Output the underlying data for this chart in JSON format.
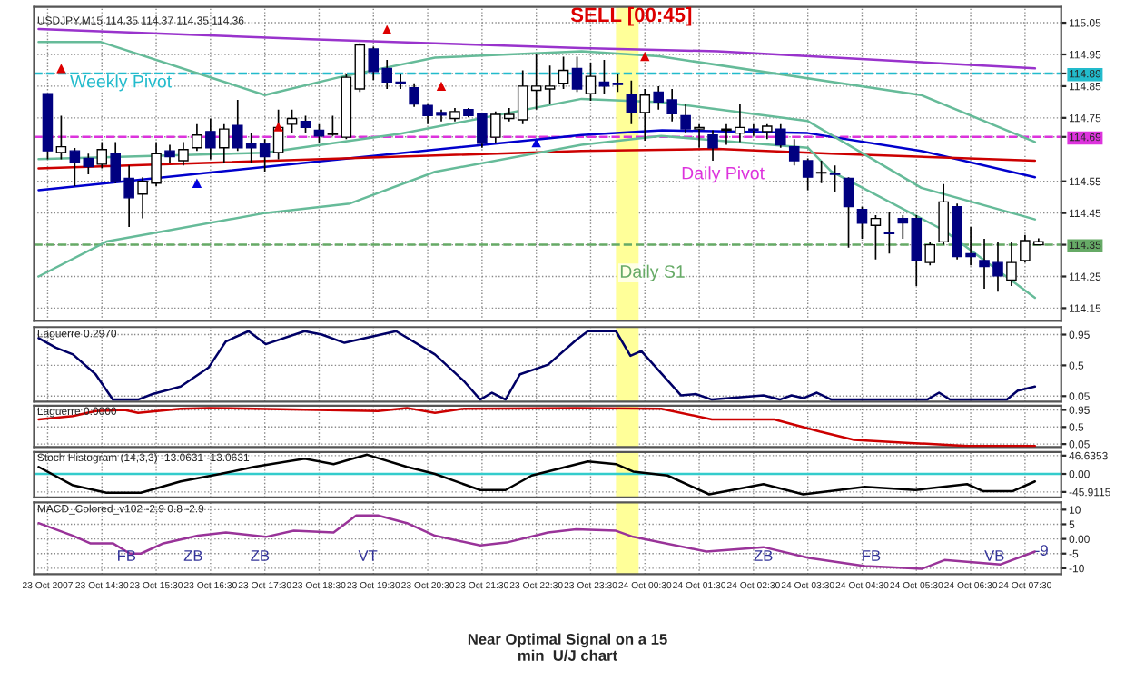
{
  "chart_data": [
    {
      "type": "candlestick",
      "title": "USDJPY,M15 114.35 114.37 114.35 114.36",
      "x": [
        "2007-10-23T13:30",
        "2007-10-23T13:45",
        "2007-10-23T14:00",
        "2007-10-23T14:15",
        "2007-10-23T14:30",
        "2007-10-23T14:45",
        "2007-10-23T15:00",
        "2007-10-23T15:15",
        "2007-10-23T15:30",
        "2007-10-23T15:45",
        "2007-10-23T16:00",
        "2007-10-23T16:15",
        "2007-10-23T16:30",
        "2007-10-23T16:45",
        "2007-10-23T17:00",
        "2007-10-23T17:15",
        "2007-10-23T17:30",
        "2007-10-23T17:45",
        "2007-10-23T18:00",
        "2007-10-23T18:15",
        "2007-10-23T18:30",
        "2007-10-23T18:45",
        "2007-10-23T19:00",
        "2007-10-23T19:15",
        "2007-10-23T19:30",
        "2007-10-23T19:45",
        "2007-10-23T20:00",
        "2007-10-23T20:15",
        "2007-10-23T20:30",
        "2007-10-23T20:45",
        "2007-10-23T21:00",
        "2007-10-23T21:15",
        "2007-10-23T21:30",
        "2007-10-23T21:45",
        "2007-10-23T22:00",
        "2007-10-23T22:15",
        "2007-10-23T22:30",
        "2007-10-23T22:45",
        "2007-10-23T23:00",
        "2007-10-23T23:15",
        "2007-10-23T23:30",
        "2007-10-23T23:45",
        "2007-10-24T00:00",
        "2007-10-24T00:15",
        "2007-10-24T00:30",
        "2007-10-24T00:45",
        "2007-10-24T01:00",
        "2007-10-24T01:15",
        "2007-10-24T01:30",
        "2007-10-24T01:45",
        "2007-10-24T02:00",
        "2007-10-24T02:15",
        "2007-10-24T02:30",
        "2007-10-24T02:45",
        "2007-10-24T03:00",
        "2007-10-24T03:15",
        "2007-10-24T03:30",
        "2007-10-24T03:45",
        "2007-10-24T04:00",
        "2007-10-24T04:15",
        "2007-10-24T04:30",
        "2007-10-24T04:45",
        "2007-10-24T05:00",
        "2007-10-24T05:15",
        "2007-10-24T05:30",
        "2007-10-24T05:45",
        "2007-10-24T06:00",
        "2007-10-24T06:15",
        "2007-10-24T06:30",
        "2007-10-24T06:45",
        "2007-10-24T07:00",
        "2007-10-24T07:15",
        "2007-10-24T07:30",
        "2007-10-24T07:45"
      ],
      "ohlc": [
        [
          114.826,
          114.826,
          114.619,
          114.646
        ],
        [
          114.641,
          114.757,
          114.619,
          114.659
        ],
        [
          114.646,
          114.655,
          114.535,
          114.609
        ],
        [
          114.622,
          114.637,
          114.572,
          114.596
        ],
        [
          114.604,
          114.674,
          114.591,
          114.65
        ],
        [
          114.637,
          114.674,
          114.544,
          114.55
        ],
        [
          114.559,
          114.6,
          114.406,
          114.498
        ],
        [
          114.51,
          114.563,
          114.433,
          114.55
        ],
        [
          114.544,
          114.674,
          114.535,
          114.637
        ],
        [
          114.646,
          114.665,
          114.609,
          114.628
        ],
        [
          114.615,
          114.674,
          114.6,
          114.65
        ],
        [
          114.656,
          114.73,
          114.646,
          114.696
        ],
        [
          114.707,
          114.748,
          114.619,
          114.656
        ],
        [
          114.656,
          114.73,
          114.609,
          114.715
        ],
        [
          114.726,
          114.807,
          114.646,
          114.656
        ],
        [
          114.67,
          114.702,
          114.609,
          114.656
        ],
        [
          114.669,
          114.683,
          114.581,
          114.628
        ],
        [
          114.641,
          114.776,
          114.619,
          114.72
        ],
        [
          114.73,
          114.776,
          114.702,
          114.748
        ],
        [
          114.739,
          114.757,
          114.702,
          114.72
        ],
        [
          114.711,
          114.73,
          114.67,
          114.693
        ],
        [
          114.698,
          114.757,
          114.693,
          114.702
        ],
        [
          114.689,
          114.887,
          114.683,
          114.878
        ],
        [
          114.841,
          114.985,
          114.832,
          114.98
        ],
        [
          114.967,
          114.974,
          114.869,
          114.896
        ],
        [
          114.906,
          114.933,
          114.841,
          114.863
        ],
        [
          114.863,
          114.887,
          114.841,
          114.859
        ],
        [
          114.845,
          114.859,
          114.785,
          114.794
        ],
        [
          114.789,
          114.794,
          114.73,
          114.757
        ],
        [
          114.767,
          114.776,
          114.739,
          114.759
        ],
        [
          114.748,
          114.781,
          114.739,
          114.77
        ],
        [
          114.776,
          114.781,
          114.752,
          114.757
        ],
        [
          114.763,
          114.767,
          114.656,
          114.67
        ],
        [
          114.689,
          114.77,
          114.67,
          114.761
        ],
        [
          114.748,
          114.781,
          114.739,
          114.761
        ],
        [
          114.744,
          114.9,
          114.73,
          114.85
        ],
        [
          114.837,
          114.952,
          114.776,
          114.85
        ],
        [
          114.841,
          114.915,
          114.794,
          114.85
        ],
        [
          114.859,
          114.943,
          114.841,
          114.9
        ],
        [
          114.906,
          114.943,
          114.832,
          114.841
        ],
        [
          114.826,
          114.924,
          114.804,
          114.881
        ],
        [
          114.863,
          114.933,
          114.826,
          114.85
        ],
        [
          114.859,
          114.887,
          114.832,
          114.855
        ],
        [
          114.822,
          114.868,
          114.73,
          114.767
        ],
        [
          114.767,
          114.841,
          114.678,
          114.822
        ],
        [
          114.831,
          114.85,
          114.776,
          114.8
        ],
        [
          114.807,
          114.841,
          114.739,
          114.763
        ],
        [
          114.757,
          114.794,
          114.702,
          114.715
        ],
        [
          114.715,
          114.73,
          114.656,
          114.72
        ],
        [
          114.696,
          114.711,
          114.615,
          114.656
        ],
        [
          114.711,
          114.73,
          114.665,
          114.715
        ],
        [
          114.702,
          114.794,
          114.674,
          114.72
        ],
        [
          114.715,
          114.73,
          114.693,
          114.711
        ],
        [
          114.707,
          114.73,
          114.683,
          114.724
        ],
        [
          114.715,
          114.73,
          114.656,
          114.665
        ],
        [
          114.659,
          114.683,
          114.6,
          114.615
        ],
        [
          114.615,
          114.622,
          114.522,
          114.563
        ],
        [
          114.576,
          114.615,
          114.544,
          114.578
        ],
        [
          114.574,
          114.6,
          114.517,
          114.572
        ],
        [
          114.559,
          114.563,
          114.341,
          114.47
        ],
        [
          114.461,
          114.47,
          114.369,
          114.418
        ],
        [
          114.411,
          114.443,
          114.304,
          114.433
        ],
        [
          114.387,
          114.452,
          114.322,
          114.385
        ],
        [
          114.433,
          114.443,
          114.369,
          114.419
        ],
        [
          114.433,
          114.443,
          114.22,
          114.3
        ],
        [
          114.294,
          114.359,
          114.285,
          114.35
        ],
        [
          114.359,
          114.541,
          114.35,
          114.485
        ],
        [
          114.47,
          114.48,
          114.304,
          114.313
        ],
        [
          114.322,
          114.406,
          114.285,
          114.313
        ],
        [
          114.3,
          114.369,
          114.211,
          114.281
        ],
        [
          114.294,
          114.359,
          114.202,
          114.252
        ],
        [
          114.239,
          114.359,
          114.22,
          114.294
        ],
        [
          114.3,
          114.381,
          114.294,
          114.363
        ],
        [
          114.35,
          114.37,
          114.35,
          114.36
        ]
      ],
      "series": [
        {
          "type": "line",
          "color": "#9933cc",
          "x": [
            "2007-10-23T13:20",
            "2007-10-23T18:20",
            "2007-10-23T23:20",
            "2007-10-24T01:50",
            "2007-10-24T07:41"
          ],
          "values": [
            115.03,
            114.998,
            114.97,
            114.96,
            114.906
          ]
        },
        {
          "type": "line",
          "color": "#0000cc",
          "x": [
            "2007-10-23T13:20",
            "2007-10-23T18:20",
            "2007-10-23T23:20",
            "2007-10-24T00:49",
            "2007-10-24T03:30",
            "2007-10-24T05:35",
            "2007-10-24T07:41"
          ],
          "values": [
            114.522,
            114.61,
            114.696,
            114.711,
            114.702,
            114.646,
            114.563
          ]
        },
        {
          "type": "line",
          "color": "#cc0000",
          "x": [
            "2007-10-23T13:20",
            "2007-10-23T23:20",
            "2007-10-24T01:50",
            "2007-10-24T03:56",
            "2007-10-24T07:41"
          ],
          "values": [
            114.591,
            114.646,
            114.652,
            114.637,
            114.615
          ]
        },
        {
          "type": "line",
          "color": "#66bb99",
          "x": [
            "2007-10-23T13:20",
            "2007-10-23T14:29",
            "2007-10-23T17:30",
            "2007-10-23T18:52",
            "2007-10-23T20:38",
            "2007-10-23T23:20",
            "2007-10-24T00:46",
            "2007-10-24T05:35",
            "2007-10-24T07:41"
          ],
          "values": [
            114.989,
            114.989,
            114.822,
            114.878,
            114.94,
            114.96,
            114.944,
            114.822,
            114.674
          ]
        },
        {
          "type": "line",
          "color": "#66bb99",
          "x": [
            "2007-10-23T13:20",
            "2007-10-23T17:30",
            "2007-10-23T20:00",
            "2007-10-23T23:20",
            "2007-10-24T00:48",
            "2007-10-24T03:30",
            "2007-10-24T05:35",
            "2007-10-24T07:41"
          ],
          "values": [
            114.62,
            114.64,
            114.7,
            114.81,
            114.8,
            114.74,
            114.53,
            114.43
          ]
        },
        {
          "type": "line",
          "color": "#66bb99",
          "x": [
            "2007-10-23T13:20",
            "2007-10-23T14:35",
            "2007-10-23T17:30",
            "2007-10-23T19:04",
            "2007-10-23T20:38",
            "2007-10-23T23:20",
            "2007-10-24T00:48",
            "2007-10-24T03:30",
            "2007-10-24T03:56",
            "2007-10-24T06:00",
            "2007-10-24T07:41"
          ],
          "values": [
            114.25,
            114.36,
            114.45,
            114.48,
            114.58,
            114.665,
            114.693,
            114.656,
            114.581,
            114.396,
            114.183
          ]
        },
        {
          "type": "scatter",
          "color": "#dd0000",
          "marker": "triangle",
          "x": [
            "2007-10-23T13:45",
            "2007-10-23T17:45",
            "2007-10-23T19:45",
            "2007-10-23T20:45",
            "2007-10-24T00:30"
          ],
          "values": [
            114.906,
            114.722,
            115.028,
            114.85,
            114.944
          ]
        },
        {
          "type": "scatter",
          "color": "#0000dd",
          "marker": "triangle",
          "x": [
            "2007-10-23T16:15",
            "2007-10-23T22:30"
          ],
          "values": [
            114.544,
            114.672
          ]
        }
      ],
      "ref_lines": [
        {
          "axis": "y",
          "value": 114.89,
          "label": "Weekly Pivot",
          "color": "#22bbcc",
          "line_style": "dashed"
        },
        {
          "axis": "y",
          "value": 114.69,
          "label": "Daily Pivot",
          "color": "#dd33dd",
          "line_style": "dashed"
        },
        {
          "axis": "y",
          "value": 114.35,
          "label": "Daily S1",
          "color": "#66aa66",
          "line_style": "dashed"
        }
      ],
      "bands": [
        {
          "axis": "x",
          "from": "2007-10-23T23:58",
          "to": "2007-10-24T00:23",
          "color": "#ffff99"
        }
      ],
      "annotations": [
        {
          "text": "SELL [00:45]",
          "x": "2007-10-24T00:15",
          "y": 115.04
        },
        "Near Optimal Signal on a 15\nmin  U/J chart"
      ],
      "xlim": [
        "2007-10-23T13:15",
        "2007-10-24T08:10"
      ],
      "ylim": [
        114.11,
        115.1
      ],
      "xticks": [
        "2007-10-23T13:30",
        "2007-10-23T14:30",
        "2007-10-23T15:30",
        "2007-10-23T16:30",
        "2007-10-23T17:30",
        "2007-10-23T18:30",
        "2007-10-23T19:30",
        "2007-10-23T20:30",
        "2007-10-23T21:30",
        "2007-10-23T22:30",
        "2007-10-23T23:30",
        "2007-10-24T00:30",
        "2007-10-24T01:30",
        "2007-10-24T02:30",
        "2007-10-24T03:30",
        "2007-10-24T04:30",
        "2007-10-24T05:30",
        "2007-10-24T06:30",
        "2007-10-24T07:30"
      ],
      "yticks": [
        115.05,
        114.95,
        {
          "value": 114.89,
          "label": "114.89"
        },
        114.85,
        114.75,
        {
          "value": 114.69,
          "label": "114.69"
        },
        114.55,
        114.45,
        {
          "value": 114.35,
          "label": "114.35"
        },
        114.25,
        114.15
      ],
      "tick_labels": "y",
      "grid": true
    },
    {
      "type": "line",
      "title": "Laguerre 0.2970",
      "series": [
        {
          "color": "#000066",
          "x": [
            "2007-10-23T13:20",
            "2007-10-23T13:39",
            "2007-10-23T13:58",
            "2007-10-23T14:23",
            "2007-10-23T14:42",
            "2007-10-23T15:10",
            "2007-10-23T15:26",
            "2007-10-23T15:57",
            "2007-10-23T16:28",
            "2007-10-23T16:47",
            "2007-10-23T17:12",
            "2007-10-23T17:31",
            "2007-10-23T18:14",
            "2007-10-23T18:33",
            "2007-10-23T18:58",
            "2007-10-23T19:55",
            "2007-10-23T20:38",
            "2007-10-23T21:10",
            "2007-10-23T21:28",
            "2007-10-23T21:41",
            "2007-10-23T21:56",
            "2007-10-23T22:12",
            "2007-10-23T22:43",
            "2007-10-23T23:14",
            "2007-10-23T23:27",
            "2007-10-23T23:58",
            "2007-10-24T00:14",
            "2007-10-24T00:26",
            "2007-10-24T01:10",
            "2007-10-24T01:26",
            "2007-10-24T01:44",
            "2007-10-24T02:41",
            "2007-10-24T02:59",
            "2007-10-24T03:12",
            "2007-10-24T03:25",
            "2007-10-24T03:40",
            "2007-10-24T03:56",
            "2007-10-24T05:42",
            "2007-10-24T05:55",
            "2007-10-24T06:07",
            "2007-10-24T07:10",
            "2007-10-24T07:22",
            "2007-10-24T07:41"
          ],
          "values": [
            0.9,
            0.76,
            0.66,
            0.37,
            0,
            0,
            0.08,
            0.19,
            0.47,
            0.85,
            1.0,
            0.81,
            1.0,
            0.95,
            0.83,
            1.0,
            0.66,
            0.27,
            0,
            0.1,
            0,
            0.37,
            0.51,
            0.87,
            1.0,
            1.0,
            0.64,
            0.71,
            0.06,
            0.08,
            0,
            0.06,
            0,
            0.06,
            0.02,
            0.1,
            0,
            0,
            0.1,
            0,
            0,
            0.13,
            0.19
          ]
        }
      ],
      "bands": [
        {
          "axis": "x",
          "from": "2007-10-23T23:58",
          "to": "2007-10-24T00:23",
          "color": "#ffff99"
        }
      ],
      "xlim": [
        "2007-10-23T13:15",
        "2007-10-24T08:10"
      ],
      "ylim": [
        -0.03,
        1.06
      ],
      "xticks": [
        "2007-10-23T13:30",
        "2007-10-23T14:30",
        "2007-10-23T15:30",
        "2007-10-23T16:30",
        "2007-10-23T17:30",
        "2007-10-23T18:30",
        "2007-10-23T19:30",
        "2007-10-23T20:30",
        "2007-10-23T21:30",
        "2007-10-23T22:30",
        "2007-10-23T23:30",
        "2007-10-24T00:30",
        "2007-10-24T01:30",
        "2007-10-24T02:30",
        "2007-10-24T03:30",
        "2007-10-24T04:30",
        "2007-10-24T05:30",
        "2007-10-24T06:30",
        "2007-10-24T07:30"
      ],
      "yticks": [
        0.95,
        0.5,
        0.05
      ],
      "tick_labels": "y",
      "grid": true
    },
    {
      "type": "line",
      "title": "Laguerre 0.0000",
      "series": [
        {
          "color": "#cc0000",
          "x": [
            "2007-10-23T13:20",
            "2007-10-23T13:58",
            "2007-10-23T14:23",
            "2007-10-23T14:55",
            "2007-10-23T15:10",
            "2007-10-23T15:57",
            "2007-10-23T16:28",
            "2007-10-23T19:35",
            "2007-10-23T20:07",
            "2007-10-23T20:38",
            "2007-10-23T21:10",
            "2007-10-23T23:14",
            "2007-10-24T00:48",
            "2007-10-24T01:44",
            "2007-10-24T02:53",
            "2007-10-24T03:43",
            "2007-10-24T04:21",
            "2007-10-24T05:23",
            "2007-10-24T06:26",
            "2007-10-24T07:41"
          ],
          "values": [
            0.7,
            0.79,
            0.92,
            0.95,
            0.87,
            0.98,
            1.0,
            0.92,
            1.0,
            0.87,
            0.98,
            1.0,
            0.98,
            0.7,
            0.7,
            0.38,
            0.16,
            0.08,
            0,
            0
          ]
        }
      ],
      "bands": [
        {
          "axis": "x",
          "from": "2007-10-23T23:58",
          "to": "2007-10-24T00:23",
          "color": "#ffff99"
        }
      ],
      "xlim": [
        "2007-10-23T13:15",
        "2007-10-24T08:10"
      ],
      "ylim": [
        -0.03,
        1.06
      ],
      "xticks": [
        "2007-10-23T13:30",
        "2007-10-23T14:30",
        "2007-10-23T15:30",
        "2007-10-23T16:30",
        "2007-10-23T17:30",
        "2007-10-23T18:30",
        "2007-10-23T19:30",
        "2007-10-23T20:30",
        "2007-10-23T21:30",
        "2007-10-23T22:30",
        "2007-10-23T23:30",
        "2007-10-24T00:30",
        "2007-10-24T01:30",
        "2007-10-24T02:30",
        "2007-10-24T03:30",
        "2007-10-24T04:30",
        "2007-10-24T05:30",
        "2007-10-24T06:30",
        "2007-10-24T07:30"
      ],
      "yticks": [
        0.95,
        0.5,
        0.05
      ],
      "tick_labels": "y",
      "grid": true
    },
    {
      "type": "line",
      "title": "Stoch Histogram (14,3,3) -13.0631 -13.0631",
      "series": [
        {
          "color": "#000000",
          "x": [
            "2007-10-23T13:20",
            "2007-10-23T13:58",
            "2007-10-23T14:35",
            "2007-10-23T15:13",
            "2007-10-23T15:57",
            "2007-10-23T16:41",
            "2007-10-23T17:18",
            "2007-10-23T18:14",
            "2007-10-23T18:46",
            "2007-10-23T19:23",
            "2007-10-23T20:07",
            "2007-10-23T20:38",
            "2007-10-23T21:28",
            "2007-10-23T21:56",
            "2007-10-23T22:25",
            "2007-10-23T23:27",
            "2007-10-23T23:58",
            "2007-10-24T00:17",
            "2007-10-24T00:55",
            "2007-10-24T01:41",
            "2007-10-24T02:41",
            "2007-10-24T03:25",
            "2007-10-24T04:33",
            "2007-10-24T05:29",
            "2007-10-24T06:26",
            "2007-10-24T06:44",
            "2007-10-24T07:16",
            "2007-10-24T07:41"
          ],
          "values": [
            18,
            -29,
            -48,
            -48,
            -19,
            0,
            18,
            39,
            25,
            49,
            18,
            0,
            -41,
            -41,
            -4,
            32,
            25,
            6,
            -4,
            -52,
            -26,
            -52,
            -33,
            -41,
            -26,
            -44,
            -44,
            -19
          ]
        }
      ],
      "ref_lines": [
        {
          "axis": "y",
          "value": 0,
          "color": "#33cccc",
          "line_style": "solid"
        }
      ],
      "bands": [
        {
          "axis": "x",
          "from": "2007-10-23T23:58",
          "to": "2007-10-24T00:23",
          "color": "#ffff99"
        }
      ],
      "xlim": [
        "2007-10-23T13:15",
        "2007-10-24T08:10"
      ],
      "ylim": [
        -60,
        56
      ],
      "xticks": [
        "2007-10-23T13:30",
        "2007-10-23T14:30",
        "2007-10-23T15:30",
        "2007-10-23T16:30",
        "2007-10-23T17:30",
        "2007-10-23T18:30",
        "2007-10-23T19:30",
        "2007-10-23T20:30",
        "2007-10-23T21:30",
        "2007-10-23T22:30",
        "2007-10-23T23:30",
        "2007-10-24T00:30",
        "2007-10-24T01:30",
        "2007-10-24T02:30",
        "2007-10-24T03:30",
        "2007-10-24T04:30",
        "2007-10-24T05:30",
        "2007-10-24T06:30",
        "2007-10-24T07:30"
      ],
      "yticks": [
        {
          "value": 46.6353,
          "label": "46.6353"
        },
        {
          "value": 0,
          "label": "0.00"
        },
        {
          "value": -45.9115,
          "label": "-45.9115"
        }
      ],
      "tick_labels": "y",
      "grid": true
    },
    {
      "type": "line",
      "title": "MACD_Colored_v102 -2.9 0.8 -2.9",
      "series": [
        {
          "color": "#993399",
          "x": [
            "2007-10-23T13:20",
            "2007-10-23T13:58",
            "2007-10-23T14:17",
            "2007-10-23T14:42",
            "2007-10-23T15:01",
            "2007-10-23T15:13",
            "2007-10-23T15:38",
            "2007-10-23T16:16",
            "2007-10-23T16:47",
            "2007-10-23T17:31",
            "2007-10-23T18:02",
            "2007-10-23T18:46",
            "2007-10-23T19:11",
            "2007-10-23T19:35",
            "2007-10-23T20:07",
            "2007-10-23T20:38",
            "2007-10-23T21:28",
            "2007-10-23T21:59",
            "2007-10-23T22:43",
            "2007-10-23T23:14",
            "2007-10-23T23:58",
            "2007-10-24T00:17",
            "2007-10-24T01:38",
            "2007-10-24T02:41",
            "2007-10-24T03:31",
            "2007-10-24T04:33",
            "2007-10-24T05:11",
            "2007-10-24T05:36",
            "2007-10-24T06:01",
            "2007-10-24T07:03",
            "2007-10-24T07:41"
          ],
          "values": [
            5.4,
            1.1,
            -1.5,
            -1.5,
            -5,
            -5,
            -1.5,
            1.1,
            2.2,
            0.7,
            2.8,
            2.2,
            8,
            8,
            5.4,
            1.1,
            -2.2,
            -1.1,
            2.2,
            3.3,
            2.8,
            0.7,
            -4.3,
            -2.8,
            -6.5,
            -9.3,
            -9.8,
            -10.2,
            -7.2,
            -8.7,
            -4.3
          ]
        }
      ],
      "bands": [
        {
          "axis": "x",
          "from": "2007-10-23T23:58",
          "to": "2007-10-24T00:23",
          "color": "#ffff99"
        }
      ],
      "annotations": [
        "FB",
        "ZB",
        "ZB",
        "VT",
        "ZB",
        "FB",
        "VB",
        {
          "text": "-9",
          "x": "2007-10-24T07:41",
          "y": -4.3
        }
      ],
      "xlim": [
        "2007-10-23T13:15",
        "2007-10-24T08:10"
      ],
      "ylim": [
        -12,
        12.5
      ],
      "xticks": [
        {
          "value": "2007-10-23T13:30",
          "label": "23 Oct 2007"
        },
        {
          "value": "2007-10-23T14:30",
          "label": "23 Oct 14:30"
        },
        {
          "value": "2007-10-23T15:30",
          "label": "23 Oct 15:30"
        },
        {
          "value": "2007-10-23T16:30",
          "label": "23 Oct 16:30"
        },
        {
          "value": "2007-10-23T17:30",
          "label": "23 Oct 17:30"
        },
        {
          "value": "2007-10-23T18:30",
          "label": "23 Oct 18:30"
        },
        {
          "value": "2007-10-23T19:30",
          "label": "23 Oct 19:30"
        },
        {
          "value": "2007-10-23T20:30",
          "label": "23 Oct 20:30"
        },
        {
          "value": "2007-10-23T21:30",
          "label": "23 Oct 21:30"
        },
        {
          "value": "2007-10-23T22:30",
          "label": "23 Oct 22:30"
        },
        {
          "value": "2007-10-23T23:30",
          "label": "23 Oct 23:30"
        },
        {
          "value": "2007-10-24T00:30",
          "label": "24 Oct 00:30"
        },
        {
          "value": "2007-10-24T01:30",
          "label": "24 Oct 01:30"
        },
        {
          "value": "2007-10-24T02:30",
          "label": "24 Oct 02:30"
        },
        {
          "value": "2007-10-24T03:30",
          "label": "24 Oct 03:30"
        },
        {
          "value": "2007-10-24T04:30",
          "label": "24 Oct 04:30"
        },
        {
          "value": "2007-10-24T05:30",
          "label": "24 Oct 05:30"
        },
        {
          "value": "2007-10-24T06:30",
          "label": "24 Oct 06:30"
        },
        {
          "value": "2007-10-24T07:30",
          "label": "24 Oct 07:30"
        }
      ],
      "yticks": [
        10,
        5,
        {
          "value": 0,
          "label": "0.00"
        },
        -5,
        -10
      ],
      "grid": true
    }
  ]
}
